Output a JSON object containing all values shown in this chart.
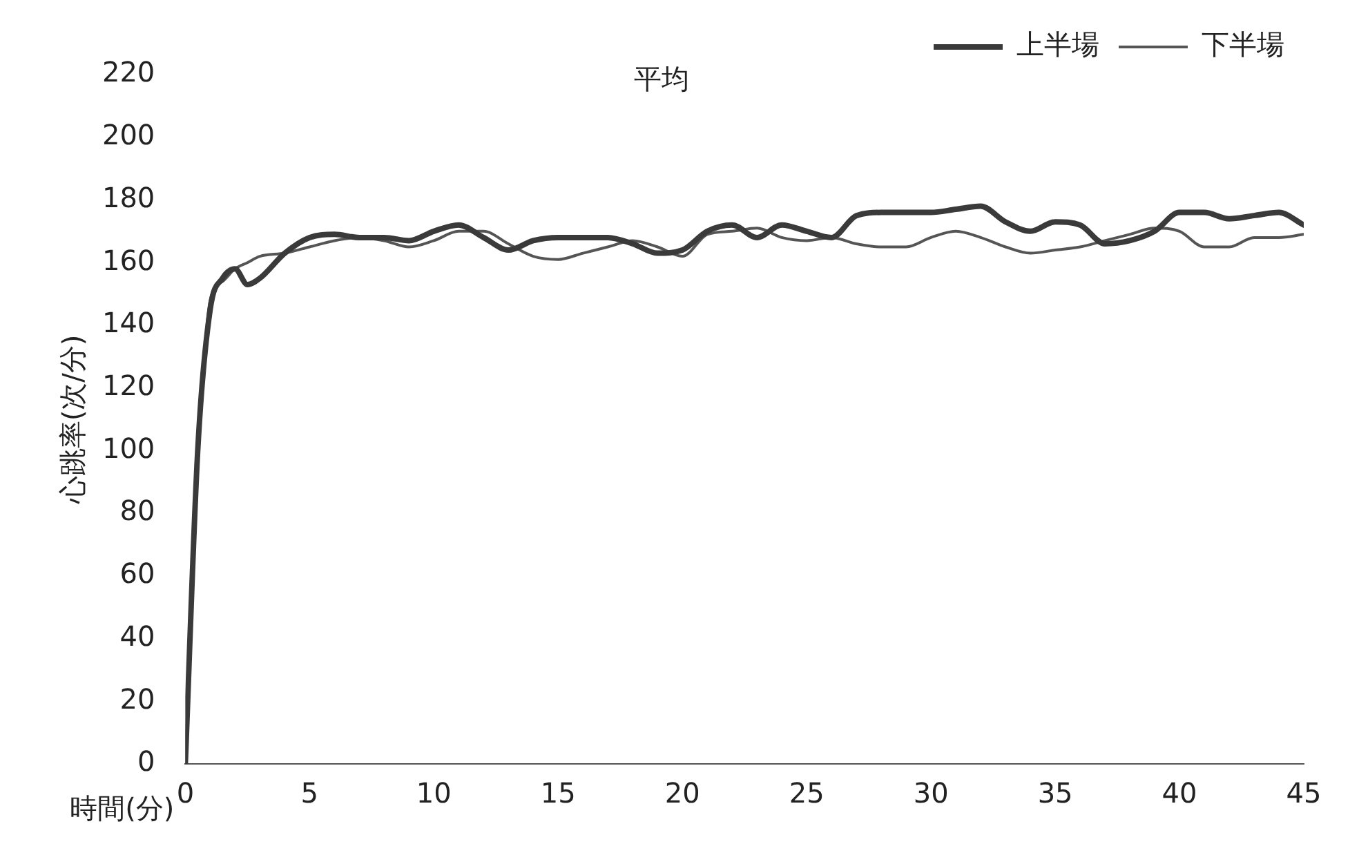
{
  "chart_data": {
    "type": "line",
    "title": "平均",
    "xlabel": "時間(分)",
    "ylabel": "心跳率(次/分)",
    "x": [
      0,
      0.5,
      1,
      1.5,
      2,
      2.5,
      3,
      4,
      5,
      6,
      7,
      8,
      9,
      10,
      11,
      12,
      13,
      14,
      15,
      16,
      17,
      18,
      19,
      20,
      21,
      22,
      23,
      24,
      25,
      26,
      27,
      28,
      29,
      30,
      31,
      32,
      33,
      34,
      35,
      36,
      37,
      38,
      39,
      40,
      41,
      42,
      43,
      44,
      45
    ],
    "series": [
      {
        "name": "上半場",
        "color": "#3a3a3a",
        "values": [
          0,
          100,
          145,
          155,
          158,
          153,
          155,
          163,
          168,
          169,
          168,
          168,
          167,
          170,
          172,
          168,
          164,
          167,
          168,
          168,
          168,
          166,
          163,
          164,
          170,
          172,
          168,
          172,
          170,
          168,
          175,
          176,
          176,
          176,
          177,
          178,
          173,
          170,
          173,
          172,
          166,
          167,
          170,
          176,
          176,
          174,
          175,
          176,
          172
        ]
      },
      {
        "name": "下半場",
        "color": "#555555",
        "values": [
          0,
          95,
          148,
          154,
          158,
          160,
          162,
          163,
          165,
          167,
          168,
          167,
          165,
          167,
          170,
          170,
          166,
          162,
          161,
          163,
          165,
          167,
          165,
          162,
          169,
          170,
          171,
          168,
          167,
          168,
          166,
          165,
          165,
          168,
          170,
          168,
          165,
          163,
          164,
          165,
          167,
          169,
          171,
          170,
          165,
          165,
          168,
          168,
          169
        ]
      }
    ],
    "xlim": [
      0,
      45
    ],
    "xticks": [
      0,
      5,
      10,
      15,
      20,
      25,
      30,
      35,
      40,
      45
    ],
    "ylim": [
      0,
      220
    ],
    "yticks": [
      0,
      20,
      40,
      60,
      80,
      100,
      120,
      140,
      160,
      180,
      200,
      220
    ],
    "grid": false,
    "legend": "top right",
    "marker": "none",
    "line_style": "solid"
  }
}
